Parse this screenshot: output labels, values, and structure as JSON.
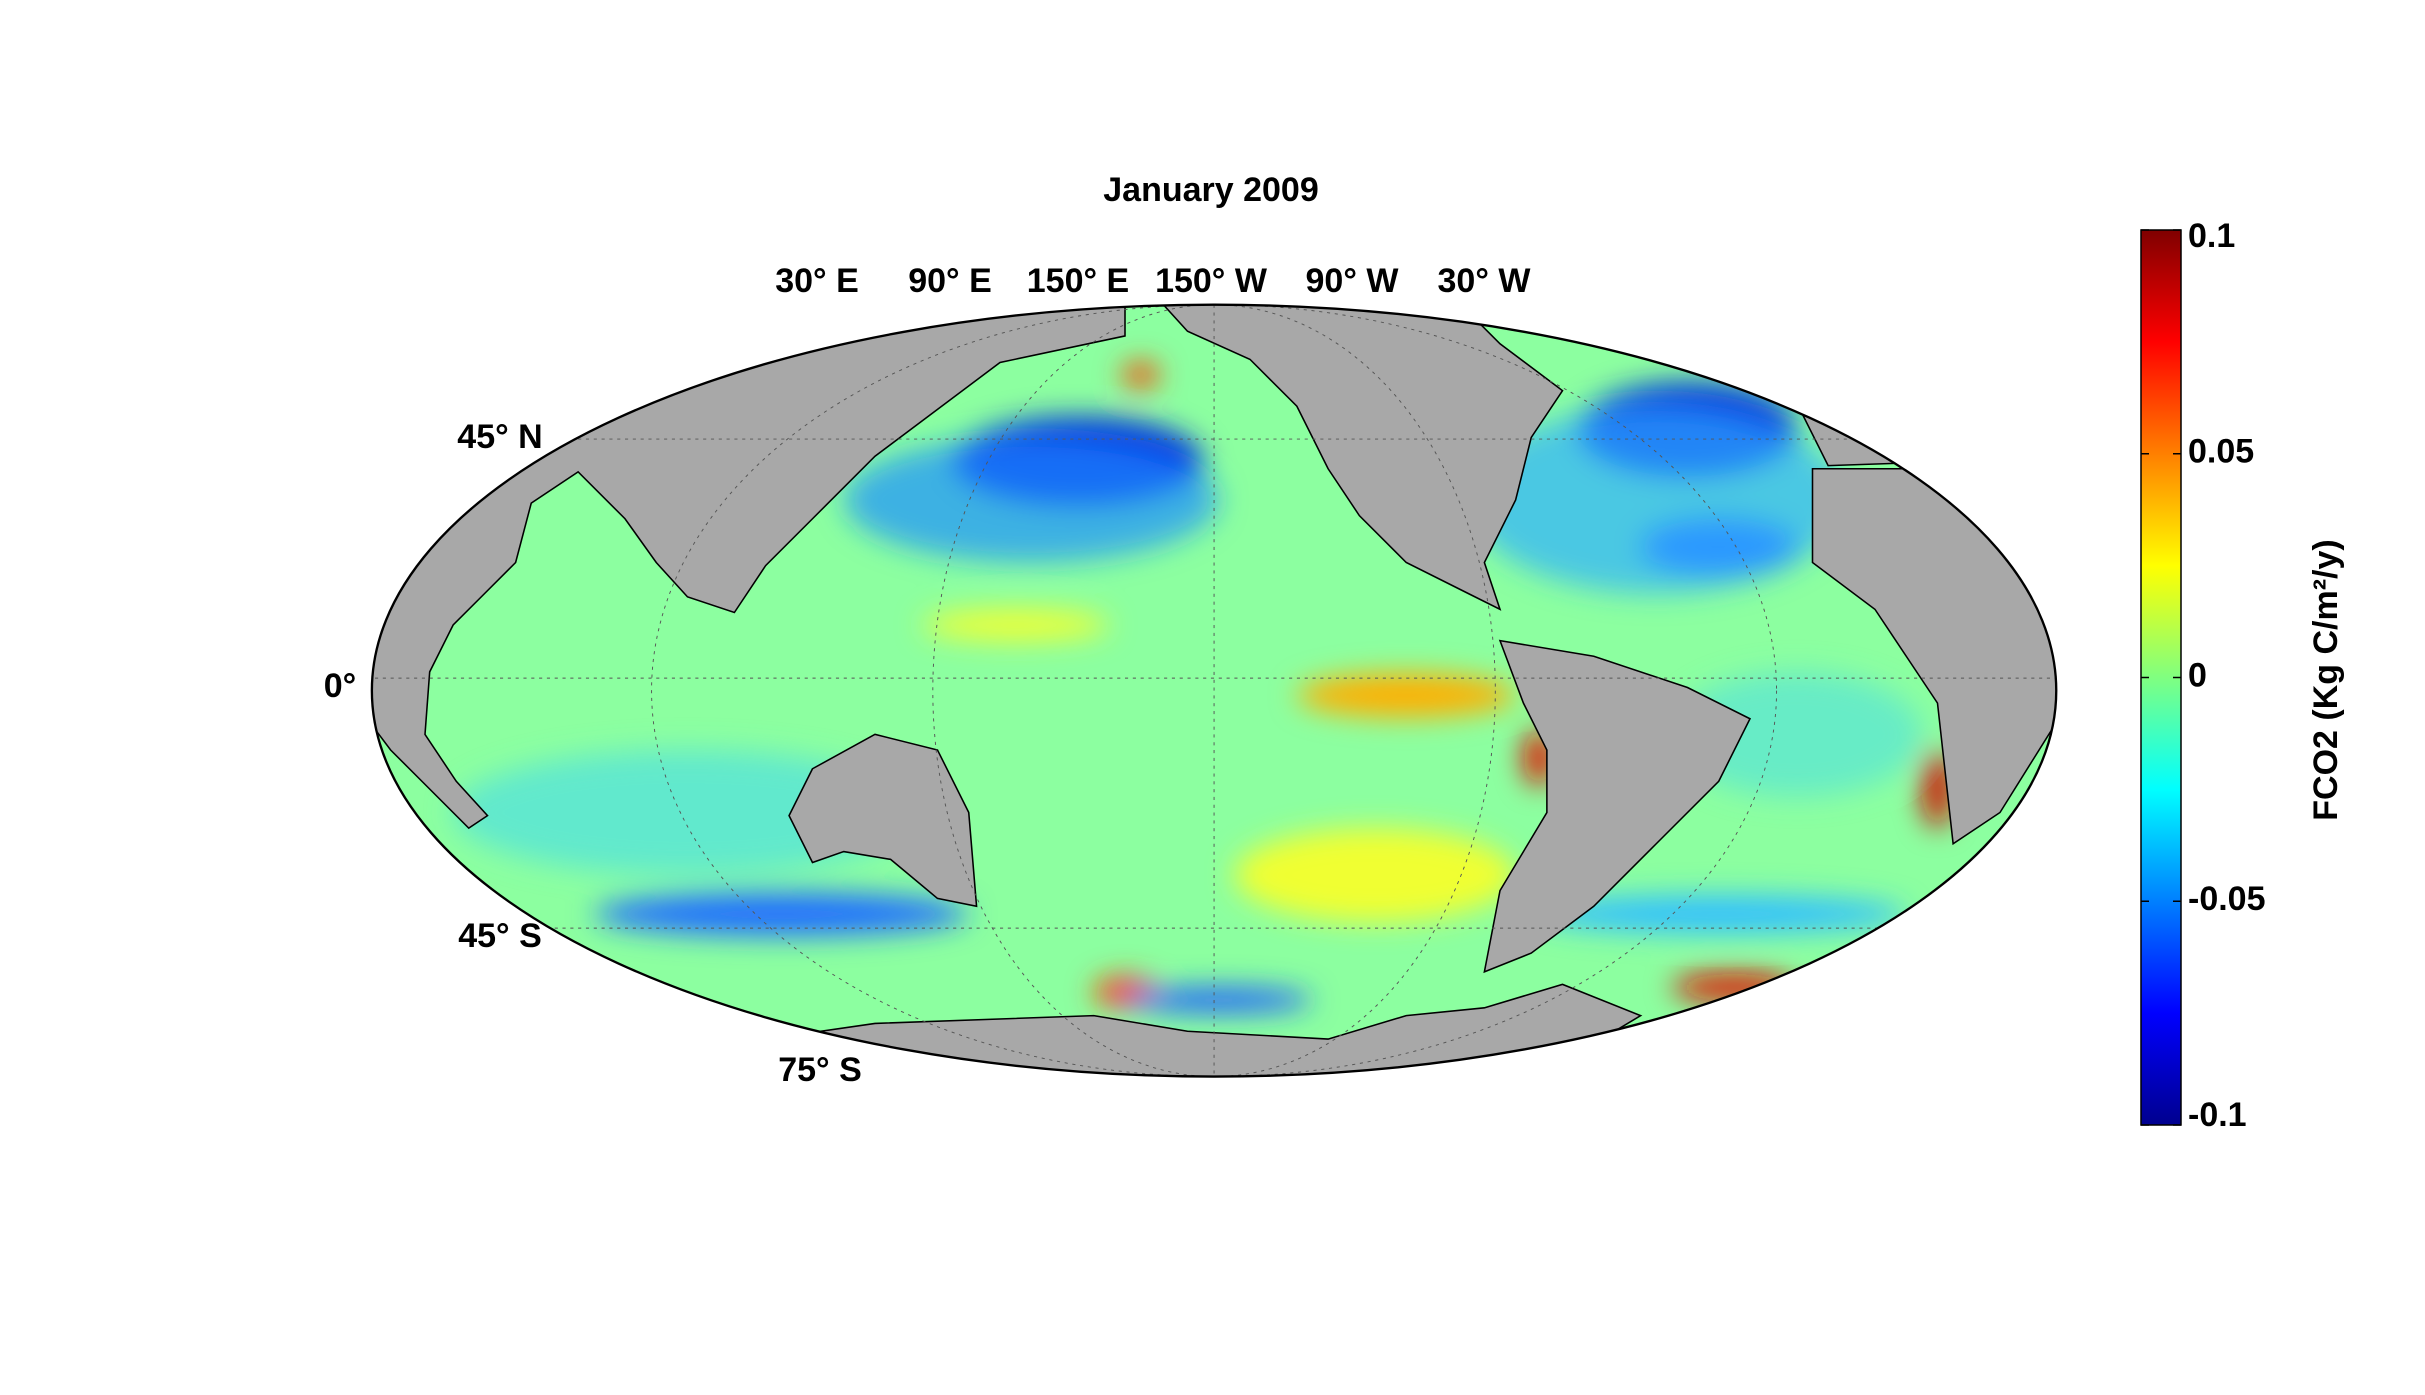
{
  "map": {
    "title": "January 2009",
    "lon_labels": [
      "30° E",
      "90° E",
      "150° E",
      "150° W",
      "90° W",
      "30° W"
    ],
    "lat_labels": [
      "45° N",
      "0°",
      "45° S",
      "75° S"
    ],
    "colorbar": {
      "label": "FCO2 (Kg C/m²/y)",
      "lim": [
        -0.1,
        0.1
      ],
      "ticks": [
        -0.1,
        -0.05,
        0,
        0.05,
        0.1
      ]
    }
  }
}
